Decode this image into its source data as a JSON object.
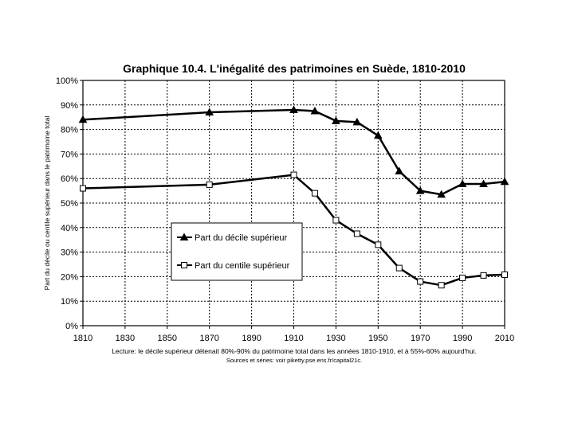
{
  "chart_data": {
    "type": "line",
    "title": "Graphique 10.4. L'inégalité des patrimoines en Suède, 1810-2010",
    "xlabel": "",
    "ylabel": "Part du décile ou centile supérieur dans le patrimoine total",
    "xlim": [
      1810,
      2010
    ],
    "ylim": [
      0,
      1
    ],
    "x_ticks": [
      "1810",
      "1830",
      "1850",
      "1870",
      "1890",
      "1910",
      "1930",
      "1950",
      "1970",
      "1990",
      "2010"
    ],
    "y_ticks": [
      "0%",
      "10%",
      "20%",
      "30%",
      "40%",
      "50%",
      "60%",
      "70%",
      "80%",
      "90%",
      "100%"
    ],
    "grid": true,
    "legend_position": "center-left",
    "series": [
      {
        "name": "Part du décile supérieur",
        "marker": "triangle",
        "color": "#000000",
        "x": [
          1810,
          1870,
          1910,
          1920,
          1930,
          1940,
          1950,
          1960,
          1970,
          1980,
          1990,
          2000,
          2010
        ],
        "y": [
          0.84,
          0.87,
          0.88,
          0.875,
          0.835,
          0.83,
          0.775,
          0.63,
          0.55,
          0.535,
          0.578,
          0.578,
          0.587
        ]
      },
      {
        "name": "Part du centile supérieur",
        "marker": "square",
        "color": "#000000",
        "x": [
          1810,
          1870,
          1910,
          1920,
          1930,
          1940,
          1950,
          1960,
          1970,
          1980,
          1990,
          2000,
          2010
        ],
        "y": [
          0.56,
          0.575,
          0.615,
          0.54,
          0.43,
          0.375,
          0.33,
          0.235,
          0.18,
          0.165,
          0.195,
          0.205,
          0.208
        ]
      }
    ],
    "note": "Lecture: le décile supérieur détenait 80%-90% du patrimoine total dans les années 1810-1910, et à 55%-60% aujourd'hui.",
    "source": "Sources et séries: voir piketty.pse.ens.fr/capital21c."
  }
}
